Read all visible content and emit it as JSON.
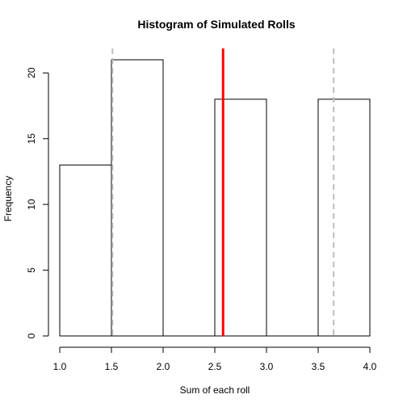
{
  "chart_data": {
    "type": "bar",
    "title": "Histogram of Simulated Rolls",
    "xlabel": "Sum of each roll",
    "ylabel": "Frequency",
    "bins": [
      {
        "start": 1.0,
        "end": 1.5,
        "count": 13
      },
      {
        "start": 1.5,
        "end": 2.0,
        "count": 21
      },
      {
        "start": 2.0,
        "end": 2.5,
        "count": 0
      },
      {
        "start": 2.5,
        "end": 3.0,
        "count": 18
      },
      {
        "start": 3.0,
        "end": 3.5,
        "count": 0
      },
      {
        "start": 3.5,
        "end": 4.0,
        "count": 18
      }
    ],
    "xlim": [
      1.0,
      4.0
    ],
    "ylim": [
      0,
      22
    ],
    "xticks": [
      "1.0",
      "1.5",
      "2.0",
      "2.5",
      "3.0",
      "3.5",
      "4.0"
    ],
    "yticks": [
      "0",
      "5",
      "10",
      "15",
      "20"
    ],
    "vlines": [
      {
        "x": 2.58,
        "color": "#ff0000",
        "style": "solid",
        "name": "mean"
      },
      {
        "x": 1.51,
        "color": "#bebebe",
        "style": "dashed",
        "name": "lower"
      },
      {
        "x": 3.65,
        "color": "#bebebe",
        "style": "dashed",
        "name": "upper"
      }
    ],
    "bar_fill": "#ffffff",
    "bar_stroke": "#000000",
    "grid": false
  }
}
